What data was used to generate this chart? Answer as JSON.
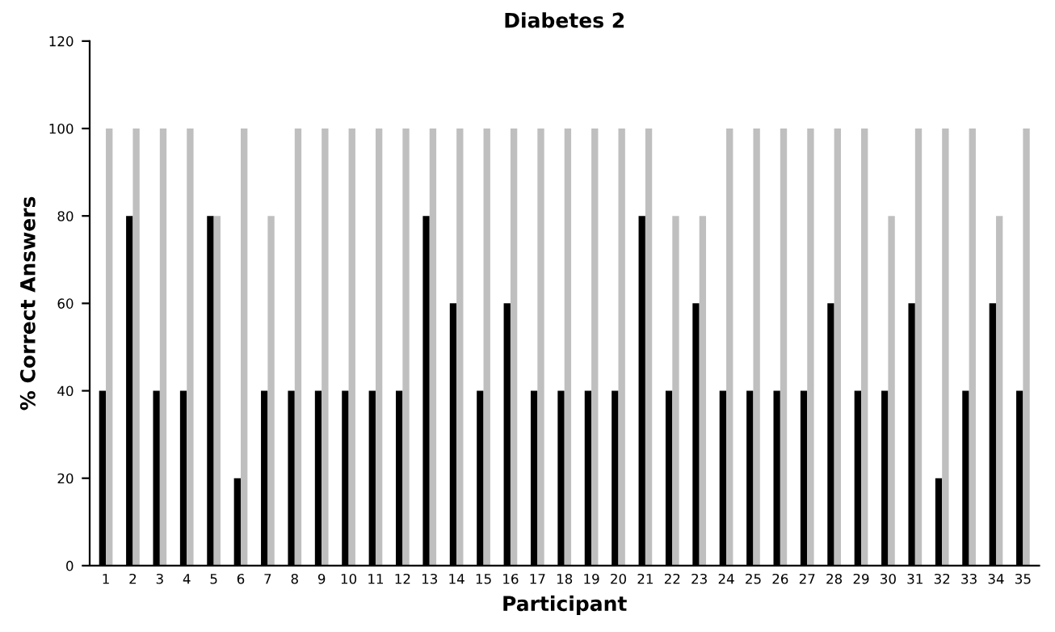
{
  "chart_data": {
    "type": "bar",
    "title": "Diabetes 2",
    "xlabel": "Participant",
    "ylabel": "% Correct Answers",
    "categories": [
      "1",
      "2",
      "3",
      "4",
      "5",
      "6",
      "7",
      "8",
      "9",
      "10",
      "11",
      "12",
      "13",
      "14",
      "15",
      "16",
      "17",
      "18",
      "19",
      "20",
      "21",
      "22",
      "23",
      "24",
      "25",
      "26",
      "27",
      "28",
      "29",
      "30",
      "31",
      "32",
      "33",
      "34",
      "35"
    ],
    "series": [
      {
        "color": "#000000",
        "values": [
          40,
          80,
          40,
          40,
          80,
          20,
          40,
          40,
          40,
          40,
          40,
          40,
          80,
          60,
          40,
          60,
          40,
          40,
          40,
          40,
          80,
          40,
          60,
          40,
          40,
          40,
          40,
          60,
          40,
          40,
          60,
          20,
          40,
          60,
          40
        ]
      },
      {
        "color": "#bfbfbf",
        "values": [
          100,
          100,
          100,
          100,
          80,
          100,
          80,
          100,
          100,
          100,
          100,
          100,
          100,
          100,
          100,
          100,
          100,
          100,
          100,
          100,
          100,
          80,
          80,
          100,
          100,
          100,
          100,
          100,
          100,
          80,
          100,
          100,
          100,
          80,
          100
        ]
      }
    ],
    "ylim": [
      0,
      120
    ],
    "yticks": [
      0,
      20,
      40,
      60,
      80,
      100,
      120
    ],
    "grid": false
  }
}
